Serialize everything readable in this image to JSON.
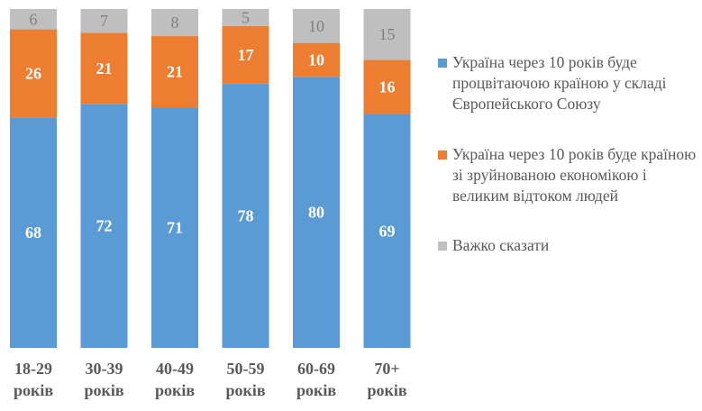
{
  "chart_data": {
    "type": "bar",
    "stacked": true,
    "categories": [
      "18-29 років",
      "30-39 років",
      "40-49 років",
      "50-59 років",
      "60-69 років",
      "70+ років"
    ],
    "category_lines": [
      [
        "18-29",
        "років"
      ],
      [
        "30-39",
        "років"
      ],
      [
        "40-49",
        "років"
      ],
      [
        "50-59",
        "років"
      ],
      [
        "60-69",
        "років"
      ],
      [
        "70+",
        "років"
      ]
    ],
    "series": [
      {
        "name": "Україна через 10 років буде процвітаючою країною у складі Європейського Союзу",
        "color": "#5b9bd5",
        "label_color": "#ffffff",
        "values": [
          68,
          72,
          71,
          78,
          80,
          69
        ]
      },
      {
        "name": "Україна через 10 років буде країною зі зруйнованою економікою і великим відтоком людей",
        "color": "#ed7d31",
        "label_color": "#ffffff",
        "values": [
          26,
          21,
          21,
          17,
          10,
          16
        ]
      },
      {
        "name": "Важко сказати",
        "color": "#bfbfbf",
        "label_color": "#7f7f7f",
        "values": [
          6,
          7,
          8,
          5,
          10,
          15
        ]
      }
    ],
    "ylim": [
      0,
      100
    ],
    "grid": false,
    "legend_position": "right"
  }
}
